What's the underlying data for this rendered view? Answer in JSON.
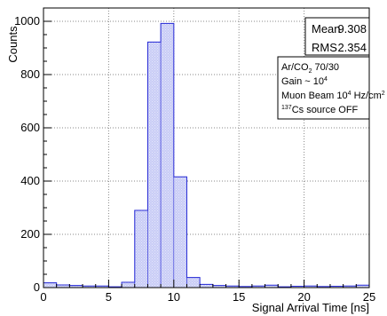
{
  "chart_data": {
    "type": "bar",
    "title": "",
    "xlabel": "Signal Arrival Time [ns]",
    "ylabel": "Counts",
    "xlim": [
      0,
      25
    ],
    "ylim": [
      0,
      1050
    ],
    "grid": true,
    "bin_width": 1,
    "x_tick_labels": [
      "0",
      "5",
      "10",
      "15",
      "20",
      "25"
    ],
    "y_tick_labels": [
      "0",
      "200",
      "400",
      "600",
      "800",
      "1000"
    ],
    "bins": [
      {
        "x_low": 0,
        "value": 18
      },
      {
        "x_low": 1,
        "value": 10
      },
      {
        "x_low": 2,
        "value": 8
      },
      {
        "x_low": 3,
        "value": 6
      },
      {
        "x_low": 4,
        "value": 6
      },
      {
        "x_low": 5,
        "value": 3
      },
      {
        "x_low": 6,
        "value": 20
      },
      {
        "x_low": 7,
        "value": 290
      },
      {
        "x_low": 8,
        "value": 922
      },
      {
        "x_low": 9,
        "value": 992
      },
      {
        "x_low": 10,
        "value": 416
      },
      {
        "x_low": 11,
        "value": 38
      },
      {
        "x_low": 12,
        "value": 12
      },
      {
        "x_low": 13,
        "value": 8
      },
      {
        "x_low": 14,
        "value": 6
      },
      {
        "x_low": 15,
        "value": 4
      },
      {
        "x_low": 16,
        "value": 6
      },
      {
        "x_low": 17,
        "value": 9
      },
      {
        "x_low": 18,
        "value": 3
      },
      {
        "x_low": 19,
        "value": 5
      },
      {
        "x_low": 20,
        "value": 6
      },
      {
        "x_low": 21,
        "value": 4
      },
      {
        "x_low": 22,
        "value": 5
      },
      {
        "x_low": 23,
        "value": 6
      },
      {
        "x_low": 24,
        "value": 9
      }
    ],
    "fill_color": "#c8ccf6",
    "line_color": "#2b2ed6"
  },
  "stats_box": {
    "mean_label": "Mean",
    "mean_value": "9.308",
    "rms_label": "RMS",
    "rms_value": "2.354"
  },
  "info_box": {
    "line1_pre": "Ar/CO",
    "line1_sub": "2",
    "line1_post": " 70/30",
    "line2_pre": "Gain ~ 10",
    "line2_sup": "4",
    "line3_pre": "Muon Beam 10",
    "line3_sup": "4",
    "line3_mid": " Hz/cm",
    "line3_sup2": "2",
    "line4_sup": "137",
    "line4_post": "Cs source OFF"
  }
}
